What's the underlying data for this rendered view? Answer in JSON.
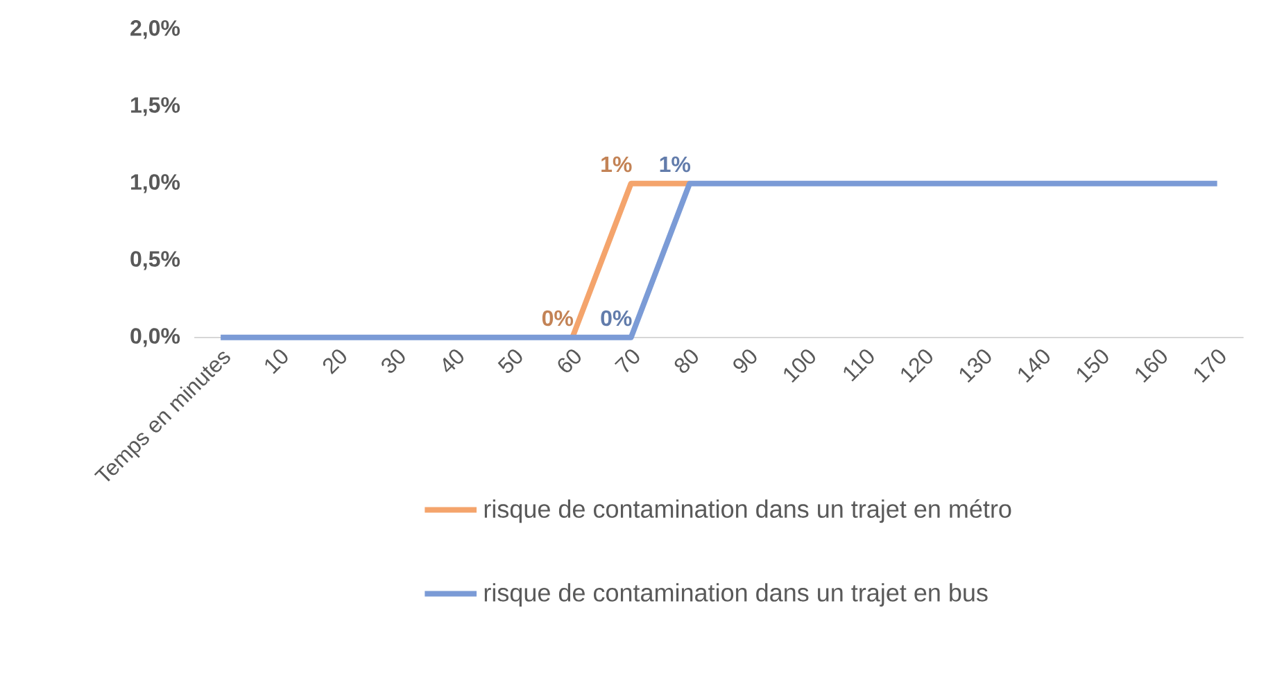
{
  "chart_data": {
    "type": "line",
    "categories": [
      "Temps en minutes",
      "10",
      "20",
      "30",
      "40",
      "50",
      "60",
      "70",
      "80",
      "90",
      "100",
      "110",
      "120",
      "130",
      "140",
      "150",
      "160",
      "170"
    ],
    "series": [
      {
        "name": "risque de contamination dans un trajet en métro",
        "color": "#f4a46c",
        "values": [
          null,
          null,
          null,
          null,
          null,
          null,
          0,
          1,
          1,
          null,
          null,
          null,
          null,
          null,
          null,
          null,
          null,
          null
        ],
        "value_labels": [
          null,
          null,
          null,
          null,
          null,
          null,
          "0%",
          "1%",
          null,
          null,
          null,
          null,
          null,
          null,
          null,
          null,
          null,
          null
        ]
      },
      {
        "name": "risque de contamination dans un trajet en bus",
        "color": "#7b9bd6",
        "values": [
          0,
          0,
          0,
          0,
          0,
          0,
          0,
          0,
          1,
          1,
          1,
          1,
          1,
          1,
          1,
          1,
          1,
          1
        ],
        "value_labels": [
          null,
          null,
          null,
          null,
          null,
          null,
          null,
          "0%",
          "1%",
          null,
          null,
          null,
          null,
          null,
          null,
          null,
          null,
          null
        ]
      }
    ],
    "ylim": [
      0,
      2
    ],
    "yticks": [
      {
        "value": 0,
        "label": "0,0%"
      },
      {
        "value": 0.5,
        "label": "0,5%"
      },
      {
        "value": 1,
        "label": "1,0%"
      },
      {
        "value": 1.5,
        "label": "1,5%"
      },
      {
        "value": 2,
        "label": "2,0%"
      }
    ],
    "grid": false,
    "legend": "bottom",
    "marker": "none",
    "line_style": "solid"
  }
}
